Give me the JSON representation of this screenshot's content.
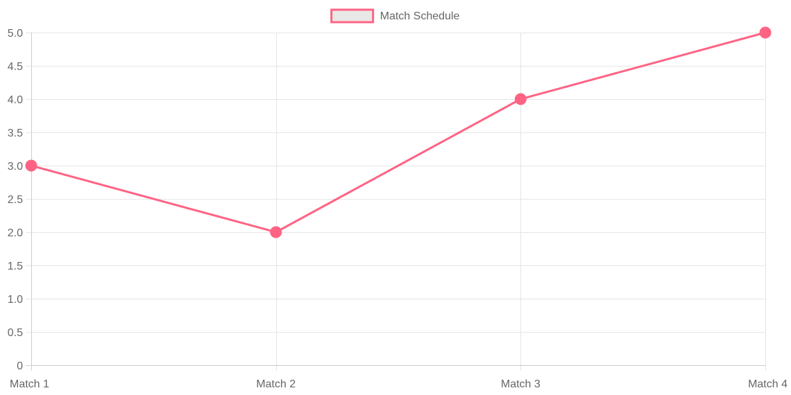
{
  "chart_data": {
    "type": "line",
    "categories": [
      "Match 1",
      "Match 2",
      "Match 3",
      "Match 4"
    ],
    "series": [
      {
        "name": "Match Schedule",
        "values": [
          3,
          2,
          4,
          5
        ],
        "color": "#ff6384",
        "fill": "#e8e8e8"
      }
    ],
    "y_ticks": [
      "0",
      "0.5",
      "1.0",
      "1.5",
      "2.0",
      "2.5",
      "3.0",
      "3.5",
      "4.0",
      "4.5",
      "5.0"
    ],
    "ylim": [
      0,
      5
    ],
    "grid": true,
    "legend_position": "top"
  }
}
